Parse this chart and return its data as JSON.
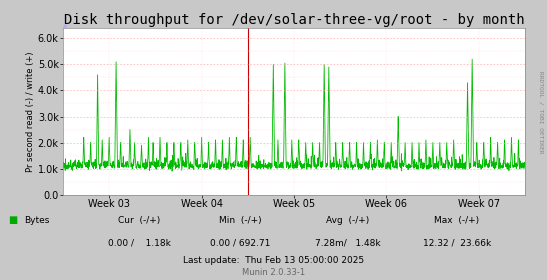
{
  "title": "Disk throughput for /dev/solar-three-vg/root - by month",
  "ylabel": "Pr second read (-) / write (+)",
  "right_label": "RRDTOOL / TOBI OETIKER",
  "x_tick_labels": [
    "Week 03",
    "Week 04",
    "Week 05",
    "Week 06",
    "Week 07"
  ],
  "x_tick_positions": [
    0.1,
    0.3,
    0.5,
    0.7,
    0.9
  ],
  "ylim": [
    0,
    6400
  ],
  "yticks": [
    0,
    1000,
    2000,
    3000,
    4000,
    5000,
    6000
  ],
  "ytick_labels": [
    "0.0",
    "1.0k",
    "2.0k",
    "3.0k",
    "4.0k",
    "5.0k",
    "6.0k"
  ],
  "line_color": "#00bb00",
  "outer_bg_color": "#c8c8c8",
  "plot_bg_color": "#ffffff",
  "vline_color": "#cc0000",
  "vline_x": 0.4,
  "legend_label": "Bytes",
  "legend_color": "#00aa00",
  "footer_cur": "Cur  (-/+)",
  "footer_min": "Min  (-/+)",
  "footer_avg": "Avg  (-/+)",
  "footer_max": "Max  (-/+)",
  "footer_cur_val": "0.00 /    1.18k",
  "footer_min_val": "0.00 / 692.71",
  "footer_avg_val": "7.28m/   1.48k",
  "footer_max_val": "12.32 /  23.66k",
  "footer_lastupdate": "Last update:  Thu Feb 13 05:00:00 2025",
  "footer_munin": "Munin 2.0.33-1",
  "title_fontsize": 10,
  "axis_fontsize": 7,
  "footer_fontsize": 6.5,
  "base_min": 1050,
  "base_max": 1400,
  "noise_scale": 120
}
